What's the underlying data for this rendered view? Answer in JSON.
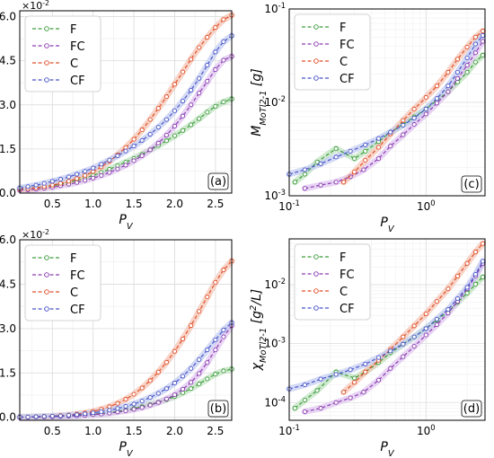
{
  "figure": {
    "panel_labels": [
      "(a)",
      "(b)",
      "(c)",
      "(d)"
    ],
    "series_colors": {
      "F": "#3f9d3f",
      "FC": "#8a3cb0",
      "C": "#e0502a",
      "CF": "#4a55c8"
    },
    "band_colors": {
      "F": "#bfe3bf",
      "FC": "#e0c6f0",
      "C": "#f6c6b6",
      "CF": "#c4cdf2"
    }
  },
  "chart_data": [
    {
      "type": "line",
      "panel": "a",
      "xlabel": "P_V",
      "ylabel": "M_{MoT_{l_2}^{-1}} [g]",
      "scale": "linear",
      "ylim": [
        0,
        0.062
      ],
      "xlim": [
        0.1,
        2.7
      ],
      "sci_multiplier": "×10^-2",
      "xticks": [
        "0.5",
        "1.0",
        "1.5",
        "2.0",
        "2.5"
      ],
      "yticks": [
        "0.0",
        "1.5",
        "3.0",
        "4.5",
        "6.0"
      ],
      "legend": {
        "position": "top-left",
        "entries": [
          "F",
          "FC",
          "C",
          "CF"
        ]
      },
      "grid": true,
      "x": [
        0.1,
        0.2,
        0.3,
        0.4,
        0.5,
        0.6,
        0.7,
        0.8,
        0.9,
        1.0,
        1.1,
        1.2,
        1.3,
        1.4,
        1.5,
        1.6,
        1.7,
        1.8,
        1.9,
        2.0,
        2.1,
        2.2,
        2.3,
        2.4,
        2.5,
        2.6,
        2.7
      ],
      "series": [
        {
          "name": "F",
          "values": [
            0.0015,
            0.0016,
            0.0018,
            0.0021,
            0.0025,
            0.003,
            0.0036,
            0.0043,
            0.0051,
            0.006,
            0.007,
            0.0081,
            0.0093,
            0.0105,
            0.0118,
            0.0132,
            0.0147,
            0.0162,
            0.0178,
            0.0195,
            0.0213,
            0.0232,
            0.0253,
            0.0275,
            0.0295,
            0.031,
            0.032
          ]
        },
        {
          "name": "FC",
          "values": [
            0.001,
            0.0011,
            0.0013,
            0.0016,
            0.002,
            0.0025,
            0.003,
            0.0036,
            0.0043,
            0.0051,
            0.006,
            0.007,
            0.0082,
            0.0095,
            0.011,
            0.0127,
            0.0147,
            0.017,
            0.0197,
            0.0228,
            0.0262,
            0.03,
            0.034,
            0.038,
            0.042,
            0.0452,
            0.0465
          ]
        },
        {
          "name": "C",
          "values": [
            0.0013,
            0.0015,
            0.0018,
            0.0022,
            0.0027,
            0.0033,
            0.004,
            0.0049,
            0.006,
            0.0073,
            0.0089,
            0.0108,
            0.013,
            0.0155,
            0.0183,
            0.0215,
            0.025,
            0.0288,
            0.0328,
            0.037,
            0.0412,
            0.0455,
            0.0495,
            0.053,
            0.0563,
            0.059,
            0.0605
          ]
        },
        {
          "name": "CF",
          "values": [
            0.0017,
            0.0022,
            0.0027,
            0.0033,
            0.004,
            0.0047,
            0.0055,
            0.0064,
            0.0074,
            0.0085,
            0.0098,
            0.0112,
            0.0127,
            0.0143,
            0.016,
            0.0179,
            0.02,
            0.0224,
            0.025,
            0.028,
            0.0313,
            0.035,
            0.039,
            0.0435,
            0.048,
            0.0515,
            0.0535
          ]
        }
      ]
    },
    {
      "type": "line",
      "panel": "b",
      "xlabel": "P_V",
      "ylabel": "χ_{MoT_{l_2}^{-1}} [g^2/L]",
      "scale": "linear",
      "ylim": [
        -0.001,
        0.06
      ],
      "xlim": [
        0.1,
        2.7
      ],
      "sci_multiplier": "×10^-2",
      "xticks": [
        "0.5",
        "1.0",
        "1.5",
        "2.0",
        "2.5"
      ],
      "yticks": [
        "0.0",
        "1.5",
        "3.0",
        "4.5",
        "6.0"
      ],
      "legend": {
        "position": "top-left",
        "entries": [
          "F",
          "FC",
          "C",
          "CF"
        ]
      },
      "grid": true,
      "x": [
        0.1,
        0.2,
        0.3,
        0.4,
        0.5,
        0.6,
        0.7,
        0.8,
        0.9,
        1.0,
        1.1,
        1.2,
        1.3,
        1.4,
        1.5,
        1.6,
        1.7,
        1.8,
        1.9,
        2.0,
        2.1,
        2.2,
        2.3,
        2.4,
        2.5,
        2.6,
        2.7
      ],
      "series": [
        {
          "name": "F",
          "values": [
            0.0001,
            0.0001,
            0.0002,
            0.0002,
            0.0003,
            0.0004,
            0.0005,
            0.0006,
            0.0008,
            0.001,
            0.0013,
            0.0016,
            0.002,
            0.0025,
            0.003,
            0.0036,
            0.0043,
            0.0051,
            0.006,
            0.007,
            0.0083,
            0.0097,
            0.0113,
            0.013,
            0.0146,
            0.0157,
            0.0163
          ]
        },
        {
          "name": "FC",
          "values": [
            0.0,
            0.0,
            0.0001,
            0.0001,
            0.0002,
            0.0003,
            0.0004,
            0.0005,
            0.0007,
            0.0009,
            0.0011,
            0.0014,
            0.0018,
            0.0022,
            0.0027,
            0.0033,
            0.0041,
            0.005,
            0.0062,
            0.0076,
            0.0095,
            0.0118,
            0.0148,
            0.0185,
            0.0228,
            0.0272,
            0.031
          ]
        },
        {
          "name": "C",
          "values": [
            0.0001,
            0.0001,
            0.0002,
            0.0003,
            0.0004,
            0.0006,
            0.0008,
            0.0011,
            0.0015,
            0.002,
            0.0027,
            0.0036,
            0.0047,
            0.0061,
            0.0078,
            0.0099,
            0.0124,
            0.0153,
            0.0186,
            0.0223,
            0.0265,
            0.031,
            0.0358,
            0.0407,
            0.0456,
            0.0498,
            0.0528
          ]
        },
        {
          "name": "CF",
          "values": [
            0.0001,
            0.0001,
            0.0002,
            0.0003,
            0.0004,
            0.0005,
            0.0007,
            0.0009,
            0.0012,
            0.0015,
            0.0019,
            0.0024,
            0.003,
            0.0037,
            0.0045,
            0.0055,
            0.0067,
            0.0081,
            0.0097,
            0.0116,
            0.0139,
            0.0165,
            0.0195,
            0.0228,
            0.0262,
            0.0295,
            0.032
          ]
        }
      ]
    },
    {
      "type": "line",
      "panel": "c",
      "xlabel": "P_V",
      "ylabel": "M_{MoT_{l_2}^{-1}} [g]",
      "scale": "log",
      "ylim": [
        0.001,
        0.1
      ],
      "xlim": [
        0.1,
        2.7
      ],
      "xticks": [
        "10^-1",
        "10^0"
      ],
      "yticks": [
        "10^-3",
        "10^-2",
        "10^-1"
      ],
      "legend": {
        "position": "top-left",
        "entries": [
          "F",
          "FC",
          "C",
          "CF"
        ]
      },
      "grid": true,
      "series": [
        {
          "name": "F",
          "x": [
            0.11,
            0.13,
            0.16,
            0.22,
            0.3,
            0.36,
            0.45,
            0.55,
            0.68,
            0.82,
            1.0,
            1.2,
            1.45,
            1.7,
            2.0,
            2.3,
            2.6
          ],
          "values": [
            0.0014,
            0.0017,
            0.0023,
            0.0032,
            0.0025,
            0.003,
            0.0038,
            0.0048,
            0.0058,
            0.007,
            0.0085,
            0.0105,
            0.013,
            0.0165,
            0.021,
            0.027,
            0.032
          ]
        },
        {
          "name": "FC",
          "x": [
            0.13,
            0.17,
            0.22,
            0.28,
            0.35,
            0.45,
            0.55,
            0.68,
            0.82,
            1.0,
            1.2,
            1.45,
            1.7,
            2.0,
            2.3,
            2.6
          ],
          "values": [
            0.0012,
            0.0013,
            0.0014,
            0.0016,
            0.0019,
            0.0025,
            0.0034,
            0.0045,
            0.0058,
            0.0075,
            0.0098,
            0.013,
            0.018,
            0.025,
            0.034,
            0.045
          ]
        },
        {
          "name": "C",
          "x": [
            0.25,
            0.3,
            0.36,
            0.45,
            0.55,
            0.68,
            0.82,
            1.0,
            1.2,
            1.45,
            1.7,
            2.0,
            2.3,
            2.6
          ],
          "values": [
            0.0014,
            0.0018,
            0.0024,
            0.0033,
            0.0046,
            0.0064,
            0.0085,
            0.0113,
            0.015,
            0.021,
            0.029,
            0.039,
            0.05,
            0.058
          ]
        },
        {
          "name": "CF",
          "x": [
            0.1,
            0.13,
            0.17,
            0.22,
            0.28,
            0.36,
            0.45,
            0.55,
            0.68,
            0.82,
            1.0,
            1.2,
            1.45,
            1.7,
            2.0,
            2.3,
            2.6
          ],
          "values": [
            0.0017,
            0.0019,
            0.0022,
            0.0026,
            0.003,
            0.0035,
            0.0041,
            0.0048,
            0.0057,
            0.0068,
            0.0085,
            0.011,
            0.015,
            0.021,
            0.03,
            0.042,
            0.052
          ]
        }
      ]
    },
    {
      "type": "line",
      "panel": "d",
      "xlabel": "P_V",
      "ylabel": "χ_{MoT_{l_2}^{-1}} [g^2/L]",
      "scale": "log",
      "ylim": [
        5e-05,
        0.06
      ],
      "xlim": [
        0.1,
        2.7
      ],
      "xticks": [
        "10^-1",
        "10^0"
      ],
      "yticks": [
        "10^-4",
        "10^-3",
        "10^-2"
      ],
      "legend": {
        "position": "top-left",
        "entries": [
          "F",
          "FC",
          "C",
          "CF"
        ]
      },
      "grid": true,
      "series": [
        {
          "name": "F",
          "x": [
            0.11,
            0.13,
            0.16,
            0.22,
            0.3,
            0.36,
            0.45,
            0.55,
            0.68,
            0.82,
            1.0,
            1.2,
            1.45,
            1.7,
            2.0,
            2.3,
            2.6
          ],
          "values": [
            8e-05,
            0.00011,
            0.00016,
            0.00033,
            0.00026,
            0.00033,
            0.00048,
            0.0007,
            0.00098,
            0.0013,
            0.0018,
            0.0025,
            0.0035,
            0.005,
            0.0072,
            0.0102,
            0.0135
          ]
        },
        {
          "name": "FC",
          "x": [
            0.13,
            0.17,
            0.22,
            0.28,
            0.35,
            0.45,
            0.55,
            0.68,
            0.82,
            1.0,
            1.2,
            1.45,
            1.7,
            2.0,
            2.3,
            2.6
          ],
          "values": [
            7e-05,
            8e-05,
            0.0001,
            0.00012,
            0.00015,
            0.00024,
            0.00038,
            0.0006,
            0.0009,
            0.0014,
            0.0021,
            0.0033,
            0.0052,
            0.0085,
            0.014,
            0.023
          ]
        },
        {
          "name": "C",
          "x": [
            0.25,
            0.3,
            0.36,
            0.45,
            0.55,
            0.68,
            0.82,
            1.0,
            1.2,
            1.45,
            1.7,
            2.0,
            2.3,
            2.6
          ],
          "values": [
            0.00015,
            0.00022,
            0.00033,
            0.00052,
            0.0008,
            0.0013,
            0.002,
            0.0032,
            0.0052,
            0.0085,
            0.014,
            0.023,
            0.036,
            0.05
          ]
        },
        {
          "name": "CF",
          "x": [
            0.1,
            0.13,
            0.17,
            0.22,
            0.28,
            0.36,
            0.45,
            0.55,
            0.68,
            0.82,
            1.0,
            1.2,
            1.45,
            1.7,
            2.0,
            2.3,
            2.6
          ],
          "values": [
            0.00017,
            0.0002,
            0.00025,
            0.0003,
            0.00036,
            0.00045,
            0.00058,
            0.00075,
            0.00098,
            0.0013,
            0.0018,
            0.0026,
            0.0038,
            0.0058,
            0.009,
            0.015,
            0.025
          ]
        }
      ]
    }
  ]
}
